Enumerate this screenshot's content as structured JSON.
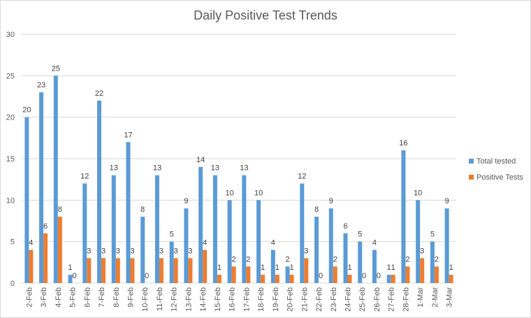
{
  "chart_data": {
    "type": "bar",
    "title": "Daily Positive Test Trends",
    "categories": [
      "2-Feb",
      "3-Feb",
      "4-Feb",
      "5-Feb",
      "6-Feb",
      "7-Feb",
      "8-Feb",
      "9-Feb",
      "10-Feb",
      "11-Feb",
      "12-Feb",
      "13-Feb",
      "14-Feb",
      "15-Feb",
      "16-Feb",
      "17-Feb",
      "18-Feb",
      "19-Feb",
      "20-Feb",
      "21-Feb",
      "22-Feb",
      "23-Feb",
      "24-Feb",
      "25-Feb",
      "26-Feb",
      "27-Feb",
      "28-Feb",
      "1-Mar",
      "2-Mar",
      "3-Mar"
    ],
    "series": [
      {
        "name": "Total tested",
        "color": "#5b9bd5",
        "values": [
          20,
          23,
          25,
          1,
          12,
          22,
          13,
          17,
          8,
          13,
          5,
          9,
          14,
          13,
          10,
          13,
          10,
          4,
          2,
          12,
          8,
          9,
          6,
          5,
          4,
          1,
          16,
          10,
          5,
          9
        ]
      },
      {
        "name": "Positive Tests",
        "color": "#ed7d31",
        "values": [
          4,
          6,
          8,
          0,
          3,
          3,
          3,
          3,
          0,
          3,
          3,
          3,
          4,
          1,
          2,
          2,
          1,
          1,
          1,
          3,
          0,
          2,
          1,
          0,
          0,
          1,
          2,
          3,
          2,
          1
        ]
      }
    ],
    "ylim": [
      0,
      30
    ],
    "yticks": [
      0,
      5,
      10,
      15,
      20,
      25,
      30
    ],
    "grid": true,
    "legend": "right",
    "data_labels": true
  }
}
